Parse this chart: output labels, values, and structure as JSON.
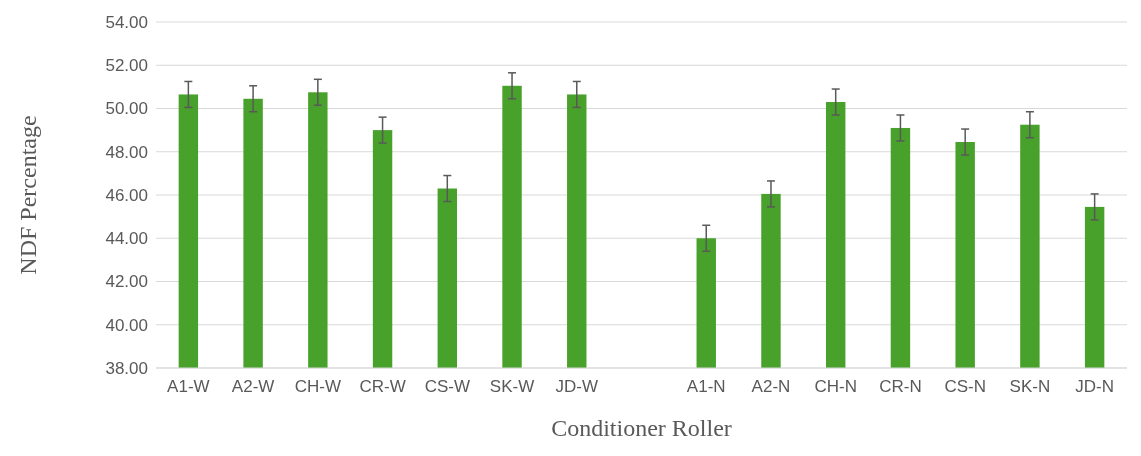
{
  "chart_data": {
    "type": "bar",
    "xlabel": "Conditioner Roller",
    "ylabel": "NDF Percentage",
    "categories": [
      "A1-W",
      "A2-W",
      "CH-W",
      "CR-W",
      "CS-W",
      "SK-W",
      "JD-W",
      null,
      "A1-N",
      "A2-N",
      "CH-N",
      "CR-N",
      "CS-N",
      "SK-N",
      "JD-N"
    ],
    "values": [
      50.65,
      50.45,
      50.75,
      49.0,
      46.3,
      51.05,
      50.65,
      null,
      44.0,
      46.05,
      50.3,
      49.1,
      48.45,
      49.25,
      45.45
    ],
    "errors": [
      0.6,
      0.6,
      0.6,
      0.6,
      0.6,
      0.6,
      0.6,
      null,
      0.6,
      0.6,
      0.6,
      0.6,
      0.6,
      0.6,
      0.6
    ],
    "color": "#48a12a",
    "ylim": [
      38,
      54
    ],
    "yticks": [
      {
        "value": 38,
        "label": "38.00"
      },
      {
        "value": 40,
        "label": "40.00"
      },
      {
        "value": 42,
        "label": "42.00"
      },
      {
        "value": 44,
        "label": "44.00"
      },
      {
        "value": 46,
        "label": "46.00"
      },
      {
        "value": 48,
        "label": "48.00"
      },
      {
        "value": 50,
        "label": "50.00"
      },
      {
        "value": 52,
        "label": "52.00"
      },
      {
        "value": 54,
        "label": "54.00"
      }
    ],
    "grid": "y"
  }
}
